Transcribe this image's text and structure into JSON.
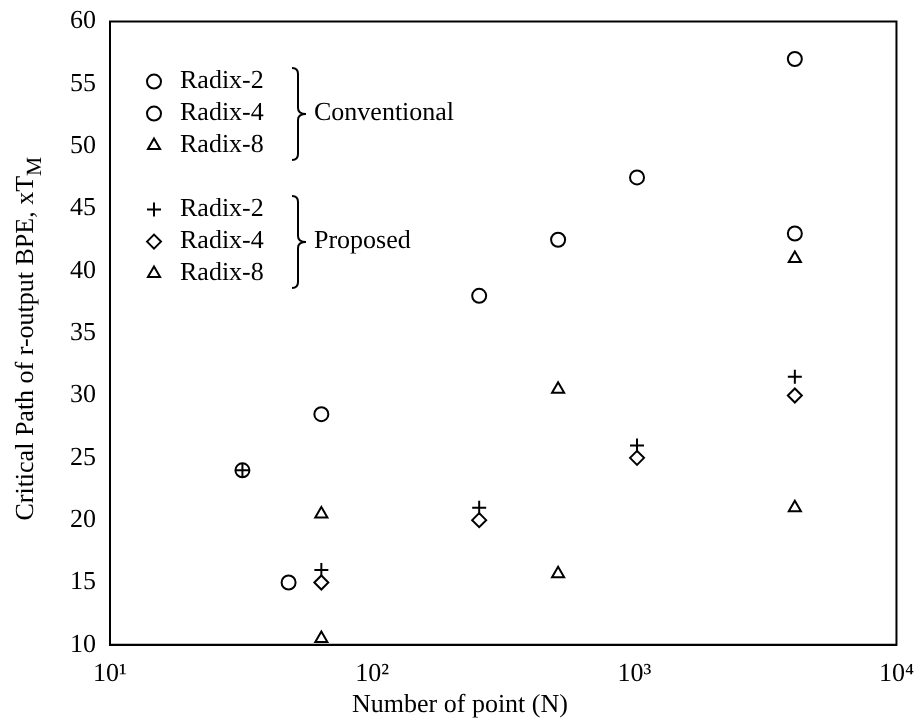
{
  "chart_data": {
    "type": "scatter",
    "xlabel": "Number of point (N)",
    "ylabel": "Critical Path of r-output BPE, xT$_{M}$",
    "log": "x",
    "xlim": [
      10,
      10000
    ],
    "xticks": [
      {
        "value": 10,
        "label": "10¹"
      },
      {
        "value": 100,
        "label": "10²"
      },
      {
        "value": 1000,
        "label": "10³"
      },
      {
        "value": 10000,
        "label": "10⁴"
      }
    ],
    "ylim": [
      10,
      60
    ],
    "yticks": [
      10,
      15,
      20,
      25,
      30,
      35,
      40,
      45,
      50,
      55,
      60
    ],
    "grid": false,
    "legend": "top left",
    "annotations": [
      "Conventional",
      "Proposed"
    ],
    "series": [
      {
        "name": "Radix-2",
        "color": "#000000",
        "marker": "circle",
        "x": [
          32,
          64,
          256,
          512,
          1024,
          4096
        ],
        "values": [
          24,
          28.5,
          38,
          42.5,
          47.5,
          57
        ]
      },
      {
        "name": "Radix-4",
        "color": "#000000",
        "marker": "circle",
        "x": [
          48,
          4096
        ],
        "values": [
          15,
          43
        ]
      },
      {
        "name": "Radix-8",
        "color": "#000000",
        "marker": "triangle",
        "x": [
          64,
          512,
          4096
        ],
        "values": [
          20.5,
          30.5,
          41
        ]
      },
      {
        "name": "Radix-2",
        "color": "#000000",
        "marker": "cross",
        "x": [
          32,
          64,
          256,
          1024,
          4096
        ],
        "values": [
          24,
          16,
          21,
          26,
          31.5
        ]
      },
      {
        "name": "Radix-4",
        "color": "#000000",
        "marker": "diamond",
        "x": [
          64,
          256,
          1024,
          4096
        ],
        "values": [
          15,
          20,
          25,
          30
        ]
      },
      {
        "name": "Radix-8",
        "color": "#000000",
        "marker": "triangle",
        "x": [
          64,
          512,
          4096
        ],
        "values": [
          10.5,
          15.7,
          21
        ]
      }
    ]
  }
}
